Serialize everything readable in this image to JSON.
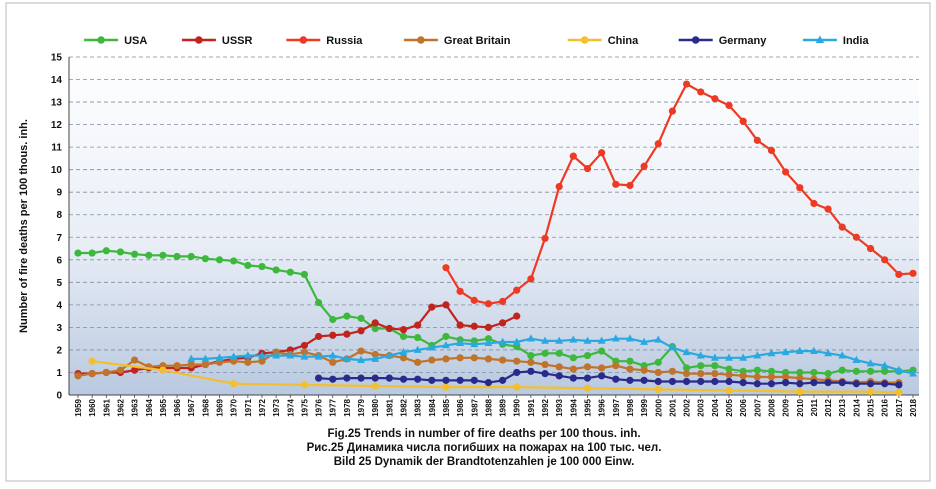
{
  "chart_data": {
    "type": "line",
    "title": "",
    "xlabel": "",
    "ylabel": "Number of fire deaths per 100 thous. inh.",
    "xlim": [
      1959,
      2018
    ],
    "ylim": [
      0,
      15
    ],
    "y_ticks": [
      0,
      1,
      2,
      3,
      4,
      5,
      6,
      7,
      8,
      9,
      10,
      11,
      12,
      13,
      14,
      15
    ],
    "x_ticks": [
      1959,
      1960,
      1961,
      1962,
      1963,
      1964,
      1965,
      1966,
      1967,
      1968,
      1969,
      1970,
      1971,
      1972,
      1973,
      1974,
      1975,
      1976,
      1977,
      1978,
      1979,
      1980,
      1981,
      1982,
      1983,
      1984,
      1985,
      1986,
      1987,
      1988,
      1989,
      1990,
      1991,
      1992,
      1993,
      1994,
      1995,
      1996,
      1997,
      1998,
      1999,
      2000,
      2001,
      2002,
      2003,
      2004,
      2005,
      2006,
      2007,
      2008,
      2009,
      2010,
      2011,
      2012,
      2013,
      2014,
      2015,
      2016,
      2017,
      2018
    ],
    "grid": "horizontal dashed",
    "legend_position": "top",
    "captions": [
      "Fig.25 Trends in number of fire deaths per 100 thous. inh.",
      "Рис.25 Динамика числа погибших на пожарах на 100 тыс. чел.",
      "Bild 25 Dynamik der Brandtotenzahlen je 100 000 Einw."
    ],
    "series": [
      {
        "name": "USA",
        "color": "#3db83d",
        "marker": "circle",
        "points": [
          [
            1959,
            6.3
          ],
          [
            1960,
            6.3
          ],
          [
            1961,
            6.4
          ],
          [
            1962,
            6.35
          ],
          [
            1963,
            6.25
          ],
          [
            1964,
            6.2
          ],
          [
            1965,
            6.2
          ],
          [
            1966,
            6.15
          ],
          [
            1967,
            6.15
          ],
          [
            1968,
            6.05
          ],
          [
            1969,
            6.0
          ],
          [
            1970,
            5.95
          ],
          [
            1971,
            5.75
          ],
          [
            1972,
            5.7
          ],
          [
            1973,
            5.55
          ],
          [
            1974,
            5.45
          ],
          [
            1975,
            5.35
          ],
          [
            1976,
            4.1
          ],
          [
            1977,
            3.35
          ],
          [
            1978,
            3.5
          ],
          [
            1979,
            3.4
          ],
          [
            1980,
            2.95
          ],
          [
            1981,
            2.95
          ],
          [
            1982,
            2.6
          ],
          [
            1983,
            2.55
          ],
          [
            1984,
            2.2
          ],
          [
            1985,
            2.6
          ],
          [
            1986,
            2.45
          ],
          [
            1987,
            2.4
          ],
          [
            1988,
            2.5
          ],
          [
            1989,
            2.25
          ],
          [
            1990,
            2.15
          ],
          [
            1991,
            1.75
          ],
          [
            1992,
            1.85
          ],
          [
            1993,
            1.85
          ],
          [
            1994,
            1.65
          ],
          [
            1995,
            1.75
          ],
          [
            1996,
            1.95
          ],
          [
            1997,
            1.5
          ],
          [
            1998,
            1.5
          ],
          [
            1999,
            1.3
          ],
          [
            2000,
            1.45
          ],
          [
            2001,
            2.15
          ],
          [
            2002,
            1.2
          ],
          [
            2003,
            1.3
          ],
          [
            2004,
            1.3
          ],
          [
            2005,
            1.15
          ],
          [
            2006,
            1.05
          ],
          [
            2007,
            1.1
          ],
          [
            2008,
            1.05
          ],
          [
            2009,
            1.0
          ],
          [
            2010,
            1.0
          ],
          [
            2011,
            1.0
          ],
          [
            2012,
            0.95
          ],
          [
            2013,
            1.1
          ],
          [
            2014,
            1.05
          ],
          [
            2015,
            1.05
          ],
          [
            2016,
            1.05
          ],
          [
            2017,
            1.05
          ],
          [
            2018,
            1.1
          ]
        ]
      },
      {
        "name": "USSR",
        "color": "#c0241c",
        "marker": "circle",
        "points": [
          [
            1959,
            0.95
          ],
          [
            1960,
            0.95
          ],
          [
            1961,
            1.0
          ],
          [
            1962,
            1.0
          ],
          [
            1963,
            1.1
          ],
          [
            1964,
            1.2
          ],
          [
            1965,
            1.2
          ],
          [
            1966,
            1.2
          ],
          [
            1967,
            1.2
          ],
          [
            1968,
            1.35
          ],
          [
            1969,
            1.5
          ],
          [
            1970,
            1.6
          ],
          [
            1971,
            1.65
          ],
          [
            1972,
            1.85
          ],
          [
            1973,
            1.9
          ],
          [
            1974,
            2.0
          ],
          [
            1975,
            2.2
          ],
          [
            1976,
            2.6
          ],
          [
            1977,
            2.65
          ],
          [
            1978,
            2.7
          ],
          [
            1979,
            2.85
          ],
          [
            1980,
            3.2
          ],
          [
            1981,
            2.95
          ],
          [
            1982,
            2.9
          ],
          [
            1983,
            3.1
          ],
          [
            1984,
            3.9
          ],
          [
            1985,
            4.0
          ],
          [
            1986,
            3.1
          ],
          [
            1987,
            3.05
          ],
          [
            1988,
            3.0
          ],
          [
            1989,
            3.2
          ],
          [
            1990,
            3.5
          ]
        ]
      },
      {
        "name": "Russia",
        "color": "#ee3a24",
        "marker": "circle",
        "points": [
          [
            1985,
            5.65
          ],
          [
            1986,
            4.6
          ],
          [
            1987,
            4.2
          ],
          [
            1988,
            4.05
          ],
          [
            1989,
            4.15
          ],
          [
            1990,
            4.65
          ],
          [
            1991,
            5.15
          ],
          [
            1992,
            6.95
          ],
          [
            1993,
            9.25
          ],
          [
            1994,
            10.6
          ],
          [
            1995,
            10.05
          ],
          [
            1996,
            10.75
          ],
          [
            1997,
            9.35
          ],
          [
            1998,
            9.3
          ],
          [
            1999,
            10.15
          ],
          [
            2000,
            11.15
          ],
          [
            2001,
            12.6
          ],
          [
            2002,
            13.8
          ],
          [
            2003,
            13.45
          ],
          [
            2004,
            13.15
          ],
          [
            2005,
            12.85
          ],
          [
            2006,
            12.15
          ],
          [
            2007,
            11.3
          ],
          [
            2008,
            10.85
          ],
          [
            2009,
            9.9
          ],
          [
            2010,
            9.2
          ],
          [
            2011,
            8.5
          ],
          [
            2012,
            8.25
          ],
          [
            2013,
            7.45
          ],
          [
            2014,
            7.0
          ],
          [
            2015,
            6.5
          ],
          [
            2016,
            6.0
          ],
          [
            2017,
            5.35
          ],
          [
            2018,
            5.4
          ]
        ]
      },
      {
        "name": "Great Britain",
        "color": "#c0732a",
        "marker": "circle",
        "points": [
          [
            1959,
            0.85
          ],
          [
            1960,
            0.95
          ],
          [
            1961,
            1.0
          ],
          [
            1962,
            1.1
          ],
          [
            1963,
            1.55
          ],
          [
            1964,
            1.25
          ],
          [
            1965,
            1.3
          ],
          [
            1966,
            1.3
          ],
          [
            1967,
            1.35
          ],
          [
            1968,
            1.35
          ],
          [
            1969,
            1.45
          ],
          [
            1970,
            1.5
          ],
          [
            1971,
            1.45
          ],
          [
            1972,
            1.5
          ],
          [
            1973,
            1.9
          ],
          [
            1974,
            1.8
          ],
          [
            1975,
            1.9
          ],
          [
            1976,
            1.75
          ],
          [
            1977,
            1.45
          ],
          [
            1978,
            1.6
          ],
          [
            1979,
            1.95
          ],
          [
            1980,
            1.8
          ],
          [
            1981,
            1.75
          ],
          [
            1982,
            1.65
          ],
          [
            1983,
            1.45
          ],
          [
            1984,
            1.55
          ],
          [
            1985,
            1.6
          ],
          [
            1986,
            1.65
          ],
          [
            1987,
            1.65
          ],
          [
            1988,
            1.6
          ],
          [
            1989,
            1.55
          ],
          [
            1990,
            1.5
          ],
          [
            1991,
            1.45
          ],
          [
            1992,
            1.35
          ],
          [
            1993,
            1.25
          ],
          [
            1994,
            1.15
          ],
          [
            1995,
            1.25
          ],
          [
            1996,
            1.2
          ],
          [
            1997,
            1.3
          ],
          [
            1998,
            1.15
          ],
          [
            1999,
            1.1
          ],
          [
            2000,
            1.0
          ],
          [
            2001,
            1.05
          ],
          [
            2002,
            0.95
          ],
          [
            2003,
            0.95
          ],
          [
            2004,
            0.95
          ],
          [
            2005,
            0.9
          ],
          [
            2006,
            0.85
          ],
          [
            2007,
            0.8
          ],
          [
            2008,
            0.8
          ],
          [
            2009,
            0.8
          ],
          [
            2010,
            0.75
          ],
          [
            2011,
            0.7
          ],
          [
            2012,
            0.65
          ],
          [
            2013,
            0.6
          ],
          [
            2014,
            0.55
          ],
          [
            2015,
            0.6
          ],
          [
            2016,
            0.55
          ],
          [
            2017,
            0.55
          ]
        ]
      },
      {
        "name": "China",
        "color": "#f2c02e",
        "marker": "circle",
        "points": [
          [
            1960,
            1.5
          ],
          [
            1965,
            1.1
          ],
          [
            1970,
            0.5
          ],
          [
            1975,
            0.45
          ],
          [
            1980,
            0.4
          ],
          [
            1985,
            0.35
          ],
          [
            1990,
            0.35
          ],
          [
            1995,
            0.3
          ],
          [
            2000,
            0.25
          ],
          [
            2005,
            0.2
          ],
          [
            2010,
            0.15
          ],
          [
            2015,
            0.15
          ],
          [
            2017,
            0.12
          ]
        ]
      },
      {
        "name": "Germany",
        "color": "#2a2a8c",
        "marker": "circle",
        "points": [
          [
            1976,
            0.75
          ],
          [
            1977,
            0.7
          ],
          [
            1978,
            0.75
          ],
          [
            1979,
            0.75
          ],
          [
            1980,
            0.75
          ],
          [
            1981,
            0.75
          ],
          [
            1982,
            0.7
          ],
          [
            1983,
            0.7
          ],
          [
            1984,
            0.65
          ],
          [
            1985,
            0.65
          ],
          [
            1986,
            0.65
          ],
          [
            1987,
            0.65
          ],
          [
            1988,
            0.55
          ],
          [
            1989,
            0.65
          ],
          [
            1990,
            1.0
          ],
          [
            1991,
            1.05
          ],
          [
            1992,
            0.95
          ],
          [
            1993,
            0.85
          ],
          [
            1994,
            0.75
          ],
          [
            1995,
            0.75
          ],
          [
            1996,
            0.85
          ],
          [
            1997,
            0.7
          ],
          [
            1998,
            0.65
          ],
          [
            1999,
            0.65
          ],
          [
            2000,
            0.6
          ],
          [
            2001,
            0.6
          ],
          [
            2002,
            0.6
          ],
          [
            2003,
            0.6
          ],
          [
            2004,
            0.6
          ],
          [
            2005,
            0.6
          ],
          [
            2006,
            0.55
          ],
          [
            2007,
            0.5
          ],
          [
            2008,
            0.5
          ],
          [
            2009,
            0.55
          ],
          [
            2010,
            0.5
          ],
          [
            2011,
            0.55
          ],
          [
            2012,
            0.55
          ],
          [
            2013,
            0.55
          ],
          [
            2014,
            0.5
          ],
          [
            2015,
            0.5
          ],
          [
            2016,
            0.5
          ],
          [
            2017,
            0.45
          ]
        ]
      },
      {
        "name": "India",
        "color": "#29a9e0",
        "marker": "triangle",
        "points": [
          [
            1967,
            1.6
          ],
          [
            1968,
            1.6
          ],
          [
            1969,
            1.65
          ],
          [
            1970,
            1.7
          ],
          [
            1971,
            1.75
          ],
          [
            1972,
            1.75
          ],
          [
            1973,
            1.75
          ],
          [
            1974,
            1.75
          ],
          [
            1975,
            1.7
          ],
          [
            1976,
            1.7
          ],
          [
            1977,
            1.75
          ],
          [
            1978,
            1.6
          ],
          [
            1979,
            1.55
          ],
          [
            1980,
            1.6
          ],
          [
            1981,
            1.75
          ],
          [
            1982,
            1.9
          ],
          [
            1983,
            2.0
          ],
          [
            1984,
            2.1
          ],
          [
            1985,
            2.2
          ],
          [
            1986,
            2.3
          ],
          [
            1987,
            2.25
          ],
          [
            1988,
            2.3
          ],
          [
            1989,
            2.35
          ],
          [
            1990,
            2.35
          ],
          [
            1991,
            2.5
          ],
          [
            1992,
            2.4
          ],
          [
            1993,
            2.4
          ],
          [
            1994,
            2.45
          ],
          [
            1995,
            2.4
          ],
          [
            1996,
            2.4
          ],
          [
            1997,
            2.5
          ],
          [
            1998,
            2.5
          ],
          [
            1999,
            2.35
          ],
          [
            2000,
            2.45
          ],
          [
            2001,
            2.1
          ],
          [
            2002,
            1.9
          ],
          [
            2003,
            1.75
          ],
          [
            2004,
            1.65
          ],
          [
            2005,
            1.65
          ],
          [
            2006,
            1.65
          ],
          [
            2007,
            1.75
          ],
          [
            2008,
            1.85
          ],
          [
            2009,
            1.9
          ],
          [
            2010,
            1.95
          ],
          [
            2011,
            1.95
          ],
          [
            2012,
            1.85
          ],
          [
            2013,
            1.75
          ],
          [
            2014,
            1.55
          ],
          [
            2015,
            1.4
          ],
          [
            2016,
            1.3
          ],
          [
            2017,
            1.1
          ],
          [
            2018,
            0.95
          ]
        ]
      }
    ]
  }
}
